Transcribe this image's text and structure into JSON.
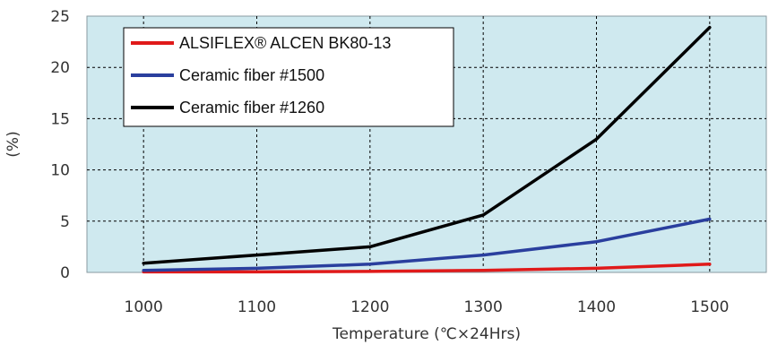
{
  "chart_data": {
    "type": "line",
    "title": "",
    "xlabel": "Temperature (℃×24Hrs)",
    "ylabel": "(%)",
    "x": [
      1000,
      1100,
      1200,
      1300,
      1400,
      1500
    ],
    "xlim": [
      950,
      1550
    ],
    "ylim": [
      0,
      25
    ],
    "xticks": [
      "1000",
      "1100",
      "1200",
      "1300",
      "1400",
      "1500"
    ],
    "yticks": [
      "0",
      "5",
      "10",
      "15",
      "20",
      "25"
    ],
    "grid": true,
    "legend_position": "top-left",
    "plot_background": "#cfe9ef",
    "series": [
      {
        "name": "ALSIFLEX® ALCEN BK80-13",
        "color": "#e01a1a",
        "values": [
          0.05,
          0.05,
          0.1,
          0.2,
          0.4,
          0.8
        ]
      },
      {
        "name": "Ceramic fiber #1500",
        "color": "#2a3f9e",
        "values": [
          0.2,
          0.4,
          0.8,
          1.7,
          3.0,
          5.2
        ]
      },
      {
        "name": "Ceramic fiber #1260",
        "color": "#000000",
        "values": [
          0.9,
          1.7,
          2.5,
          5.6,
          13.0,
          23.9
        ]
      }
    ]
  }
}
